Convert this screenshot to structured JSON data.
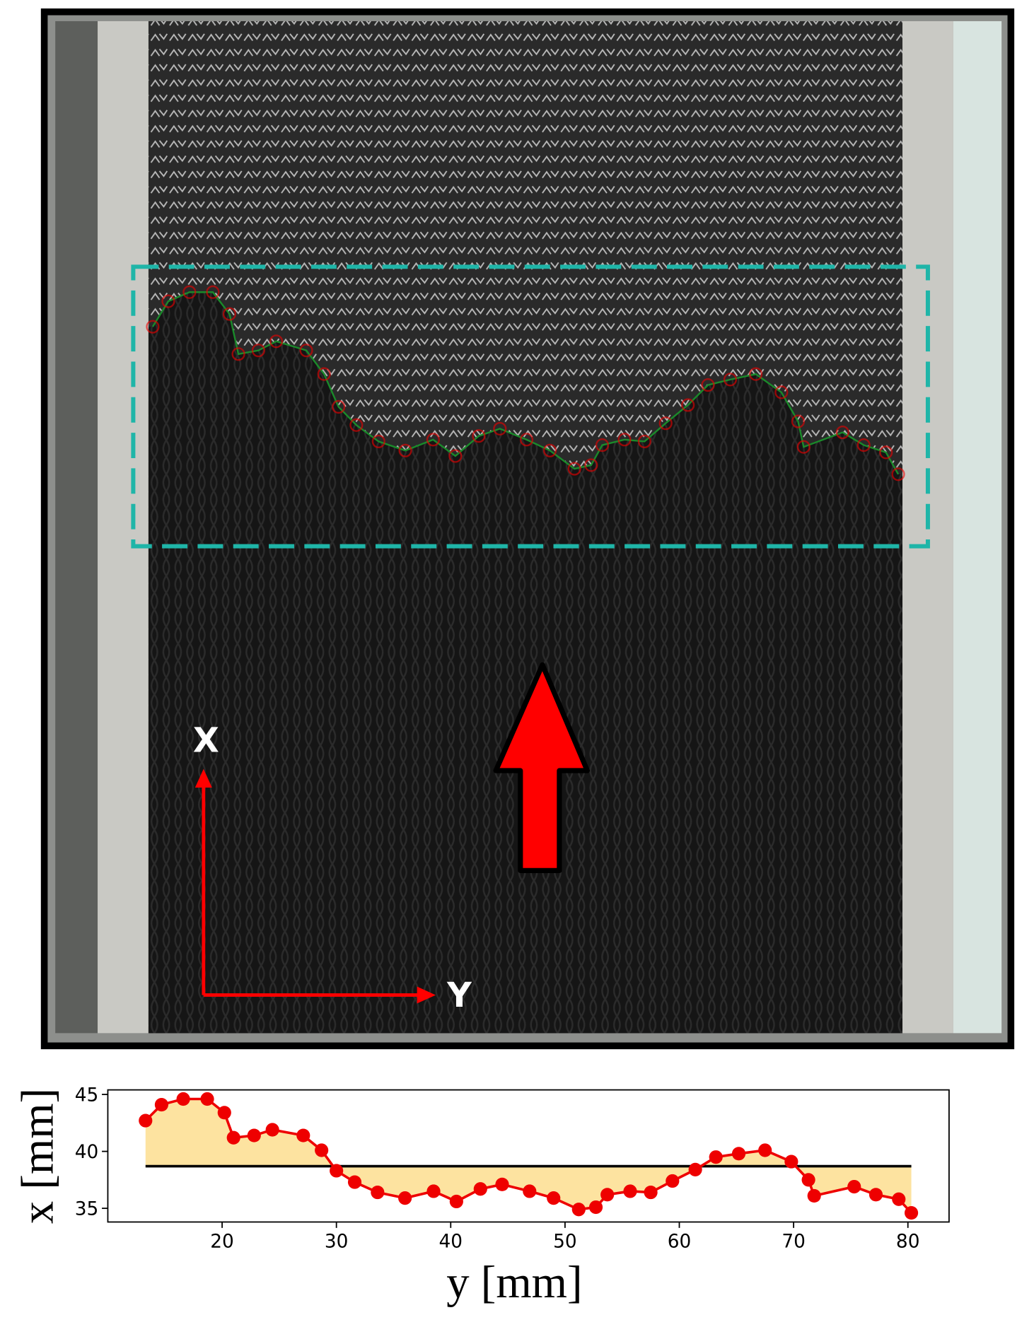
{
  "photo": {
    "axis_labels": {
      "x": "X",
      "y": "Y"
    }
  },
  "chart_data": {
    "type": "line",
    "xlabel": "y [mm]",
    "ylabel": "x [mm]",
    "x": [
      13.3,
      14.7,
      16.6,
      18.7,
      20.2,
      21.0,
      22.8,
      24.4,
      27.1,
      28.7,
      30.0,
      31.6,
      33.6,
      36.0,
      38.5,
      40.5,
      42.6,
      44.5,
      46.9,
      49.0,
      51.2,
      52.7,
      53.7,
      55.7,
      57.5,
      59.4,
      61.4,
      63.2,
      65.2,
      67.5,
      69.8,
      71.3,
      71.8,
      75.3,
      77.2,
      79.2,
      80.3
    ],
    "series": [
      {
        "color": "#ee0000",
        "values": [
          42.7,
          44.1,
          44.6,
          44.6,
          43.4,
          41.2,
          41.4,
          41.9,
          41.4,
          40.1,
          38.3,
          37.3,
          36.4,
          35.9,
          36.5,
          35.6,
          36.7,
          37.1,
          36.5,
          35.9,
          34.9,
          35.1,
          36.2,
          36.5,
          36.4,
          37.4,
          38.4,
          39.5,
          39.8,
          40.1,
          39.1,
          37.5,
          36.1,
          36.9,
          36.2,
          35.8,
          34.6
        ]
      }
    ],
    "reference_line": {
      "value": 38.7,
      "color": "#000000"
    },
    "fill_color": "#fde3a0",
    "xlim": [
      10.0,
      83.6
    ],
    "ylim": [
      33.8,
      45.4
    ],
    "xticks": [
      20,
      30,
      40,
      50,
      60,
      70,
      80
    ],
    "yticks": [
      35,
      40,
      45
    ]
  }
}
